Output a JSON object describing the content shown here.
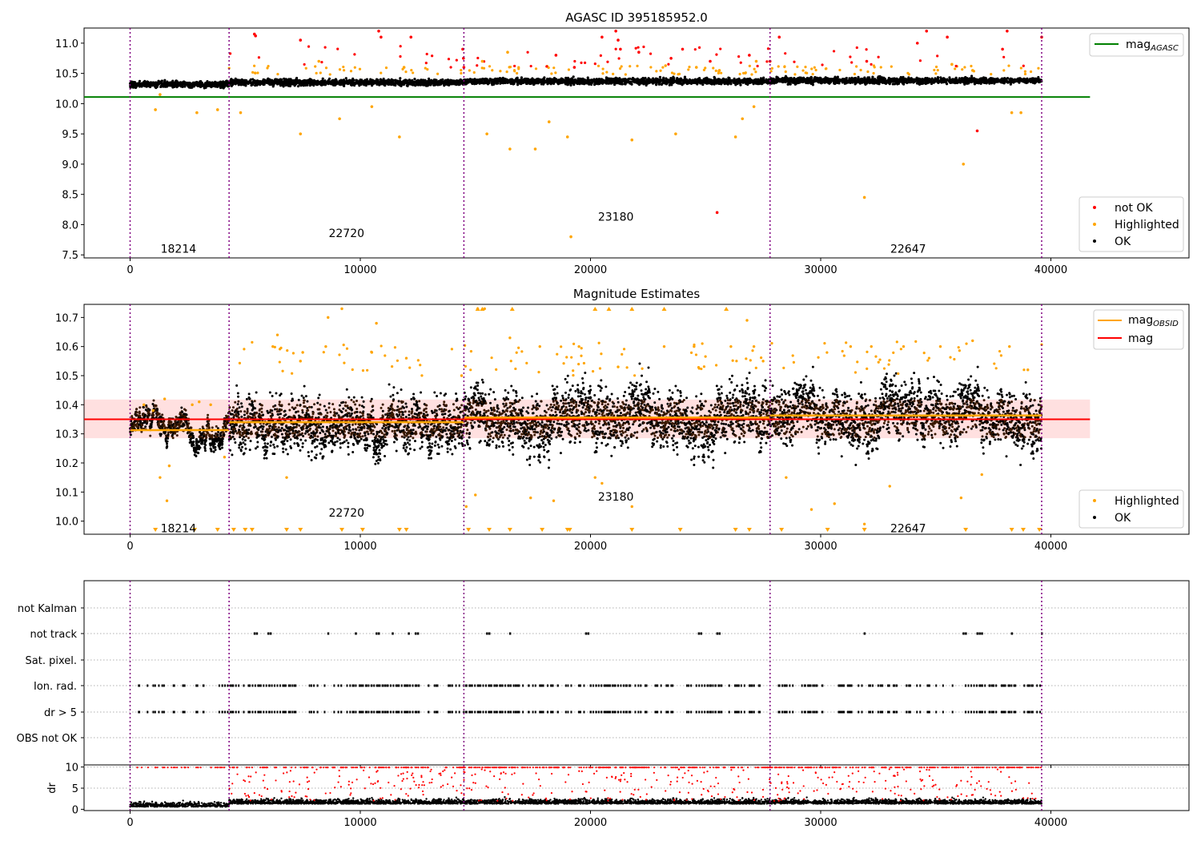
{
  "chart_data": [
    {
      "type": "scatter",
      "title": "AGASC ID 395185952.0",
      "xlim": [
        -2000,
        46000
      ],
      "ylim": [
        7.45,
        11.25
      ],
      "xticks": [
        0,
        10000,
        20000,
        30000,
        40000
      ],
      "yticks": [
        7.5,
        8.0,
        8.5,
        9.0,
        9.5,
        10.0,
        10.5,
        11.0
      ],
      "obs_boundaries": [
        0,
        4300,
        14500,
        27800,
        39600
      ],
      "obs_labels": [
        {
          "text": "18214",
          "x": 2100,
          "y": 7.6
        },
        {
          "text": "22720",
          "x": 9400,
          "y": 7.86
        },
        {
          "text": "23180",
          "x": 21100,
          "y": 8.13
        },
        {
          "text": "22647",
          "x": 33800,
          "y": 7.6
        }
      ],
      "mag_agasc": 10.11,
      "mag_agasc_range": [
        -2000,
        41700
      ],
      "segments": [
        {
          "x0": 0,
          "x1": 4300,
          "level": 10.32
        },
        {
          "x0": 4300,
          "x1": 14500,
          "level": 10.35
        },
        {
          "x0": 14500,
          "x1": 27800,
          "level": 10.37
        },
        {
          "x0": 27800,
          "x1": 39600,
          "level": 10.38
        }
      ],
      "legend_top": [
        {
          "name": "mag_AGASC",
          "color": "#008000"
        }
      ],
      "legend_bottom": [
        {
          "name": "not OK",
          "color": "#ff0000"
        },
        {
          "name": "Highlighted",
          "color": "#ffa500"
        },
        {
          "name": "OK",
          "color": "#000000"
        }
      ],
      "outliers_red": [
        [
          5400,
          11.15
        ],
        [
          5450,
          11.12
        ],
        [
          7400,
          11.05
        ],
        [
          10800,
          11.2
        ],
        [
          10900,
          11.1
        ],
        [
          12200,
          11.1
        ],
        [
          14450,
          10.9
        ],
        [
          14480,
          10.75
        ],
        [
          14500,
          10.6
        ],
        [
          18500,
          10.8
        ],
        [
          19300,
          10.6
        ],
        [
          20500,
          11.1
        ],
        [
          21100,
          11.2
        ],
        [
          21200,
          11.05
        ],
        [
          21300,
          10.9
        ],
        [
          22100,
          10.85
        ],
        [
          23500,
          10.75
        ],
        [
          24000,
          10.9
        ],
        [
          25200,
          10.7
        ],
        [
          26900,
          10.8
        ],
        [
          27800,
          10.7
        ],
        [
          28200,
          11.1
        ],
        [
          32000,
          10.7
        ],
        [
          34200,
          11.0
        ],
        [
          34600,
          11.2
        ],
        [
          35500,
          11.1
        ],
        [
          37900,
          10.9
        ],
        [
          38100,
          11.2
        ],
        [
          39600,
          11.1
        ],
        [
          25500,
          8.2
        ],
        [
          36800,
          9.55
        ]
      ],
      "outliers_orange": [
        [
          1100,
          9.9
        ],
        [
          1300,
          10.15
        ],
        [
          2900,
          9.85
        ],
        [
          3800,
          9.9
        ],
        [
          4800,
          9.85
        ],
        [
          7400,
          9.5
        ],
        [
          9100,
          9.75
        ],
        [
          10500,
          9.95
        ],
        [
          11700,
          9.45
        ],
        [
          15500,
          9.5
        ],
        [
          16500,
          9.25
        ],
        [
          17600,
          9.25
        ],
        [
          18200,
          9.7
        ],
        [
          19000,
          9.45
        ],
        [
          21800,
          9.4
        ],
        [
          23700,
          9.5
        ],
        [
          26300,
          9.45
        ],
        [
          26600,
          9.75
        ],
        [
          27100,
          9.95
        ],
        [
          31900,
          8.45
        ],
        [
          36200,
          9.0
        ],
        [
          38300,
          9.85
        ],
        [
          38700,
          9.85
        ],
        [
          19150,
          7.8
        ],
        [
          8200,
          10.7
        ],
        [
          11900,
          10.6
        ],
        [
          15300,
          10.7
        ],
        [
          16400,
          10.85
        ],
        [
          24600,
          10.6
        ],
        [
          25600,
          10.55
        ],
        [
          27200,
          10.7
        ],
        [
          35700,
          10.65
        ],
        [
          36600,
          10.55
        ]
      ]
    },
    {
      "type": "scatter",
      "title": "Magnitude Estimates",
      "xlim": [
        -2000,
        46000
      ],
      "ylim": [
        9.955,
        10.745
      ],
      "xticks": [
        0,
        10000,
        20000,
        30000,
        40000
      ],
      "yticks": [
        10.0,
        10.1,
        10.2,
        10.3,
        10.4,
        10.5,
        10.6,
        10.7
      ],
      "obs_boundaries": [
        0,
        4300,
        14500,
        27800,
        39600
      ],
      "obs_labels": [
        {
          "text": "18214",
          "x": 2100,
          "y": 9.975
        },
        {
          "text": "22720",
          "x": 9400,
          "y": 10.03
        },
        {
          "text": "23180",
          "x": 21100,
          "y": 10.085
        },
        {
          "text": "22647",
          "x": 33800,
          "y": 9.975
        }
      ],
      "mag": 10.35,
      "mag_band": [
        10.285,
        10.418
      ],
      "mag_range": [
        -2000,
        41700
      ],
      "mag_obsid": [
        {
          "x0": 0,
          "x1": 4300,
          "value": 10.313
        },
        {
          "x0": 4300,
          "x1": 14500,
          "value": 10.34
        },
        {
          "x0": 14500,
          "x1": 27800,
          "value": 10.356
        },
        {
          "x0": 27800,
          "x1": 39600,
          "value": 10.363
        }
      ],
      "spread": [
        {
          "x0": 0,
          "x1": 4300,
          "lo": 10.26,
          "hi": 10.38
        },
        {
          "x0": 4300,
          "x1": 14500,
          "lo": 10.17,
          "hi": 10.5
        },
        {
          "x0": 14500,
          "x1": 27800,
          "lo": 10.18,
          "hi": 10.55
        },
        {
          "x0": 27800,
          "x1": 39600,
          "lo": 10.2,
          "hi": 10.55
        }
      ],
      "legend_top": [
        {
          "name": "mag_OBSID",
          "color": "#ffa500"
        },
        {
          "name": "mag",
          "color": "#ff0000"
        }
      ],
      "legend_bottom": [
        {
          "name": "Highlighted",
          "color": "#ffa500"
        },
        {
          "name": "OK",
          "color": "#000000"
        }
      ],
      "highlighted": [
        [
          600,
          10.4
        ],
        [
          1000,
          10.38
        ],
        [
          1300,
          10.15
        ],
        [
          1500,
          10.42
        ],
        [
          1600,
          10.07
        ],
        [
          1700,
          10.19
        ],
        [
          2700,
          10.4
        ],
        [
          3000,
          10.41
        ],
        [
          3500,
          10.4
        ],
        [
          4100,
          10.22
        ],
        [
          6200,
          10.6
        ],
        [
          6400,
          10.64
        ],
        [
          6800,
          10.15
        ],
        [
          7400,
          10.55
        ],
        [
          7500,
          10.58
        ],
        [
          8500,
          10.6
        ],
        [
          8600,
          10.7
        ],
        [
          9200,
          10.73
        ],
        [
          10500,
          10.58
        ],
        [
          10700,
          10.68
        ],
        [
          12000,
          10.56
        ],
        [
          14400,
          10.5
        ],
        [
          14600,
          10.05
        ],
        [
          15000,
          10.09
        ],
        [
          15100,
          10.73
        ],
        [
          15400,
          10.73
        ],
        [
          16500,
          10.63
        ],
        [
          17400,
          10.08
        ],
        [
          17800,
          10.6
        ],
        [
          18400,
          10.07
        ],
        [
          19500,
          10.6
        ],
        [
          20200,
          10.15
        ],
        [
          20500,
          10.13
        ],
        [
          21200,
          10.53
        ],
        [
          21800,
          10.05
        ],
        [
          23200,
          10.6
        ],
        [
          24500,
          10.6
        ],
        [
          26100,
          10.6
        ],
        [
          26800,
          10.69
        ],
        [
          27100,
          10.6
        ],
        [
          27500,
          10.55
        ],
        [
          28500,
          10.15
        ],
        [
          29600,
          10.04
        ],
        [
          30600,
          10.06
        ],
        [
          31300,
          10.6
        ],
        [
          31900,
          9.99
        ],
        [
          32200,
          10.6
        ],
        [
          33000,
          10.12
        ],
        [
          33600,
          10.6
        ],
        [
          35200,
          10.6
        ],
        [
          36100,
          10.08
        ],
        [
          36600,
          10.62
        ],
        [
          37000,
          10.16
        ],
        [
          38200,
          10.6
        ],
        [
          39000,
          10.52
        ]
      ],
      "triangles_top": [
        15100,
        15300,
        16600,
        20200,
        20800,
        21800,
        23200,
        25900
      ],
      "triangles_bottom": [
        1100,
        2800,
        3800,
        4500,
        5000,
        5300,
        6800,
        7400,
        9200,
        10100,
        11700,
        12000,
        14700,
        15600,
        16500,
        17900,
        19000,
        19100,
        21800,
        23900,
        26300,
        26900,
        28300,
        30300,
        31900,
        36300,
        38300,
        38800,
        39500
      ]
    },
    {
      "type": "scatter",
      "title": "",
      "xlim": [
        -2000,
        46000
      ],
      "categories": [
        "not Kalman",
        "not track",
        "Sat. pixel.",
        "Ion. rad.",
        "dr > 5",
        "OBS not OK"
      ],
      "xticks": [
        0,
        10000,
        20000,
        30000,
        40000
      ],
      "obs_boundaries": [
        0,
        4300,
        14500,
        27800,
        39600
      ],
      "not_track_x": [
        5400,
        5500,
        6000,
        6100,
        8600,
        9800,
        10700,
        10800,
        11400,
        12100,
        12400,
        12500,
        15500,
        15600,
        16500,
        19800,
        19900,
        24700,
        24800,
        25500,
        25600,
        31900,
        36200,
        36300,
        36800,
        36900,
        37000,
        38300,
        39600
      ]
    },
    {
      "type": "scatter",
      "title": "",
      "ylabel": "dr",
      "xlim": [
        -2000,
        46000
      ],
      "ylim": [
        -0.3,
        10.5
      ],
      "yticks": [
        0,
        5,
        10
      ],
      "xticks": [
        0,
        10000,
        20000,
        30000,
        40000
      ],
      "tick_labels_x": [
        "0",
        "10000",
        "20000",
        "30000",
        "40000"
      ],
      "obs_boundaries": [
        0,
        4300,
        14500,
        27800,
        39600
      ],
      "threshold": 5
    }
  ]
}
